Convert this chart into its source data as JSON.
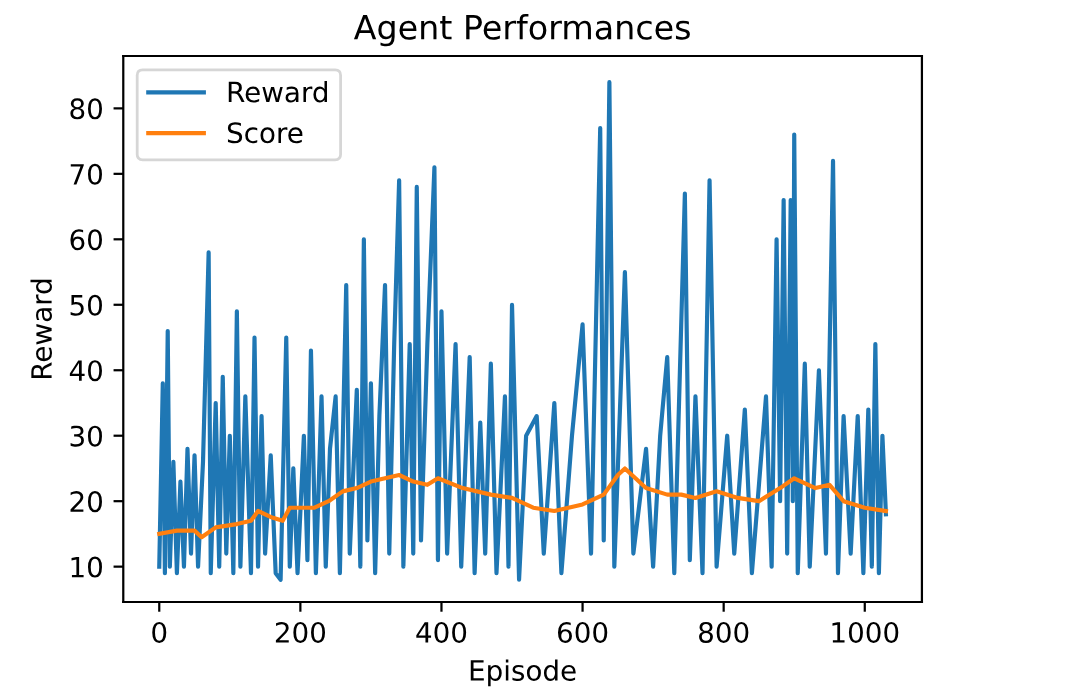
{
  "chart_data": {
    "type": "line",
    "title": "Agent Performances",
    "xlabel": "Episode",
    "ylabel": "Reward",
    "xlim": [
      -51,
      1081
    ],
    "ylim": [
      4.6,
      88
    ],
    "xticks": [
      0,
      200,
      400,
      600,
      800,
      1000
    ],
    "yticks": [
      10,
      20,
      30,
      40,
      50,
      60,
      70,
      80
    ],
    "legend": "top left",
    "grid": false,
    "series": [
      {
        "name": "Reward",
        "color": "#1f77b4",
        "x": [
          0,
          5,
          8,
          12,
          15,
          20,
          25,
          30,
          35,
          40,
          45,
          50,
          55,
          62,
          70,
          73,
          80,
          85,
          90,
          95,
          100,
          105,
          110,
          115,
          122,
          130,
          135,
          140,
          145,
          150,
          158,
          165,
          172,
          180,
          185,
          190,
          196,
          205,
          210,
          215,
          222,
          230,
          236,
          242,
          250,
          256,
          265,
          270,
          280,
          285,
          290,
          295,
          300,
          306,
          312,
          320,
          326,
          333,
          340,
          346,
          355,
          360,
          365,
          371,
          380,
          390,
          395,
          400,
          408,
          420,
          428,
          440,
          447,
          455,
          462,
          470,
          478,
          490,
          495,
          500,
          510,
          520,
          535,
          545,
          560,
          570,
          585,
          600,
          612,
          625,
          630,
          638,
          645,
          660,
          672,
          690,
          700,
          710,
          720,
          730,
          745,
          752,
          760,
          770,
          780,
          790,
          805,
          815,
          830,
          840,
          860,
          868,
          875,
          880,
          885,
          890,
          895,
          898,
          900,
          905,
          915,
          922,
          935,
          945,
          955,
          962,
          970,
          980,
          990,
          998,
          1005,
          1010,
          1015,
          1020,
          1025,
          1030
        ],
        "values": [
          10,
          38,
          9,
          46,
          10,
          26,
          9,
          23,
          10,
          28,
          12,
          27,
          10,
          26,
          58,
          9,
          35,
          10,
          39,
          12,
          30,
          9,
          49,
          10,
          36,
          9,
          45,
          10,
          33,
          12,
          27,
          9,
          8,
          45,
          10,
          25,
          9,
          30,
          11,
          43,
          9,
          36,
          10,
          28,
          36,
          9,
          53,
          12,
          37,
          10,
          60,
          14,
          38,
          9,
          33,
          53,
          12,
          44,
          69,
          10,
          44,
          12,
          68,
          14,
          44,
          71,
          11,
          49,
          12,
          44,
          10,
          42,
          9,
          32,
          12,
          41,
          9,
          36,
          10,
          50,
          8,
          30,
          33,
          12,
          35,
          9,
          30,
          47,
          12,
          77,
          14,
          84,
          10,
          55,
          12,
          28,
          10,
          30,
          42,
          9,
          67,
          11,
          36,
          9,
          69,
          10,
          30,
          12,
          34,
          9,
          36,
          10,
          60,
          20,
          66,
          12,
          66,
          20,
          76,
          9,
          41,
          10,
          40,
          12,
          72,
          9,
          33,
          12,
          33,
          9,
          34,
          10,
          44,
          9,
          30,
          18
        ]
      },
      {
        "name": "Score",
        "color": "#ff7f0e",
        "x": [
          0,
          25,
          50,
          60,
          80,
          110,
          130,
          140,
          160,
          175,
          185,
          220,
          240,
          260,
          280,
          300,
          320,
          340,
          360,
          380,
          395,
          430,
          470,
          500,
          530,
          560,
          600,
          630,
          650,
          660,
          690,
          720,
          740,
          760,
          790,
          820,
          850,
          880,
          900,
          930,
          950,
          970,
          1000,
          1030
        ],
        "values": [
          15,
          15.5,
          15.5,
          14.5,
          16,
          16.5,
          17,
          18.5,
          17.5,
          17,
          19,
          19,
          20,
          21.5,
          22,
          23,
          23.5,
          24,
          23,
          22.5,
          23.5,
          22,
          21,
          20.5,
          19,
          18.5,
          19.5,
          21,
          24,
          25,
          22,
          21,
          21,
          20.5,
          21.5,
          20.5,
          20,
          22,
          23.5,
          22,
          22.5,
          20,
          19,
          18.5
        ]
      }
    ]
  }
}
